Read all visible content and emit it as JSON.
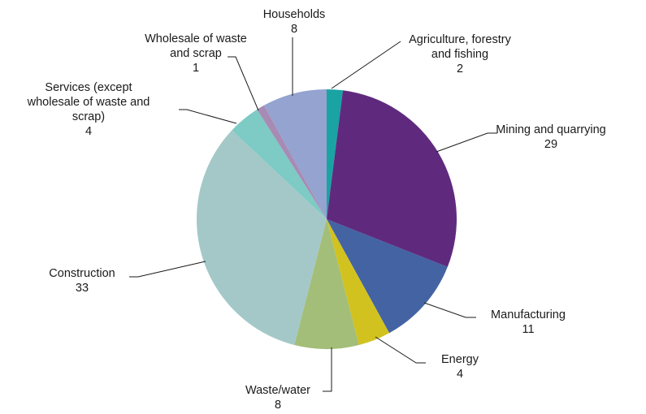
{
  "chart_data": {
    "type": "pie",
    "title": "",
    "slices": [
      {
        "label": "Agriculture, forestry and fishing",
        "label_lines": [
          "Agriculture, forestry",
          "and fishing"
        ],
        "value": 2,
        "value_text": "2",
        "color": "#1aa3a3"
      },
      {
        "label": "Mining and quarrying",
        "label_lines": [
          "Mining and quarrying"
        ],
        "value": 29,
        "value_text": "29",
        "color": "#5f2a7e"
      },
      {
        "label": "Manufacturing",
        "label_lines": [
          "Manufacturing"
        ],
        "value": 11,
        "value_text": "11",
        "color": "#4363a3"
      },
      {
        "label": "Energy",
        "label_lines": [
          "Energy"
        ],
        "value": 4,
        "value_text": "4",
        "color": "#d2c21f"
      },
      {
        "label": "Waste/water",
        "label_lines": [
          "Waste/water"
        ],
        "value": 8,
        "value_text": "8",
        "color": "#a3be78"
      },
      {
        "label": "Construction",
        "label_lines": [
          "Construction"
        ],
        "value": 33,
        "value_text": "33",
        "color": "#a4c8c8"
      },
      {
        "label": "Services (except wholesale of waste and scrap)",
        "label_lines": [
          "Services (except",
          "wholesale of waste and",
          "scrap)"
        ],
        "value": 4,
        "value_text": "4",
        "color": "#7ecac4"
      },
      {
        "label": "Wholesale of waste and scrap",
        "label_lines": [
          "Wholesale of waste",
          "and scrap"
        ],
        "value": 1,
        "value_text": "1",
        "color": "#a78bb5"
      },
      {
        "label": "Households",
        "label_lines": [
          "Households"
        ],
        "value": 8,
        "value_text": "8",
        "color": "#94a3cf"
      }
    ],
    "start_angle_deg": 0,
    "direction": "clockwise",
    "legend": "none"
  }
}
